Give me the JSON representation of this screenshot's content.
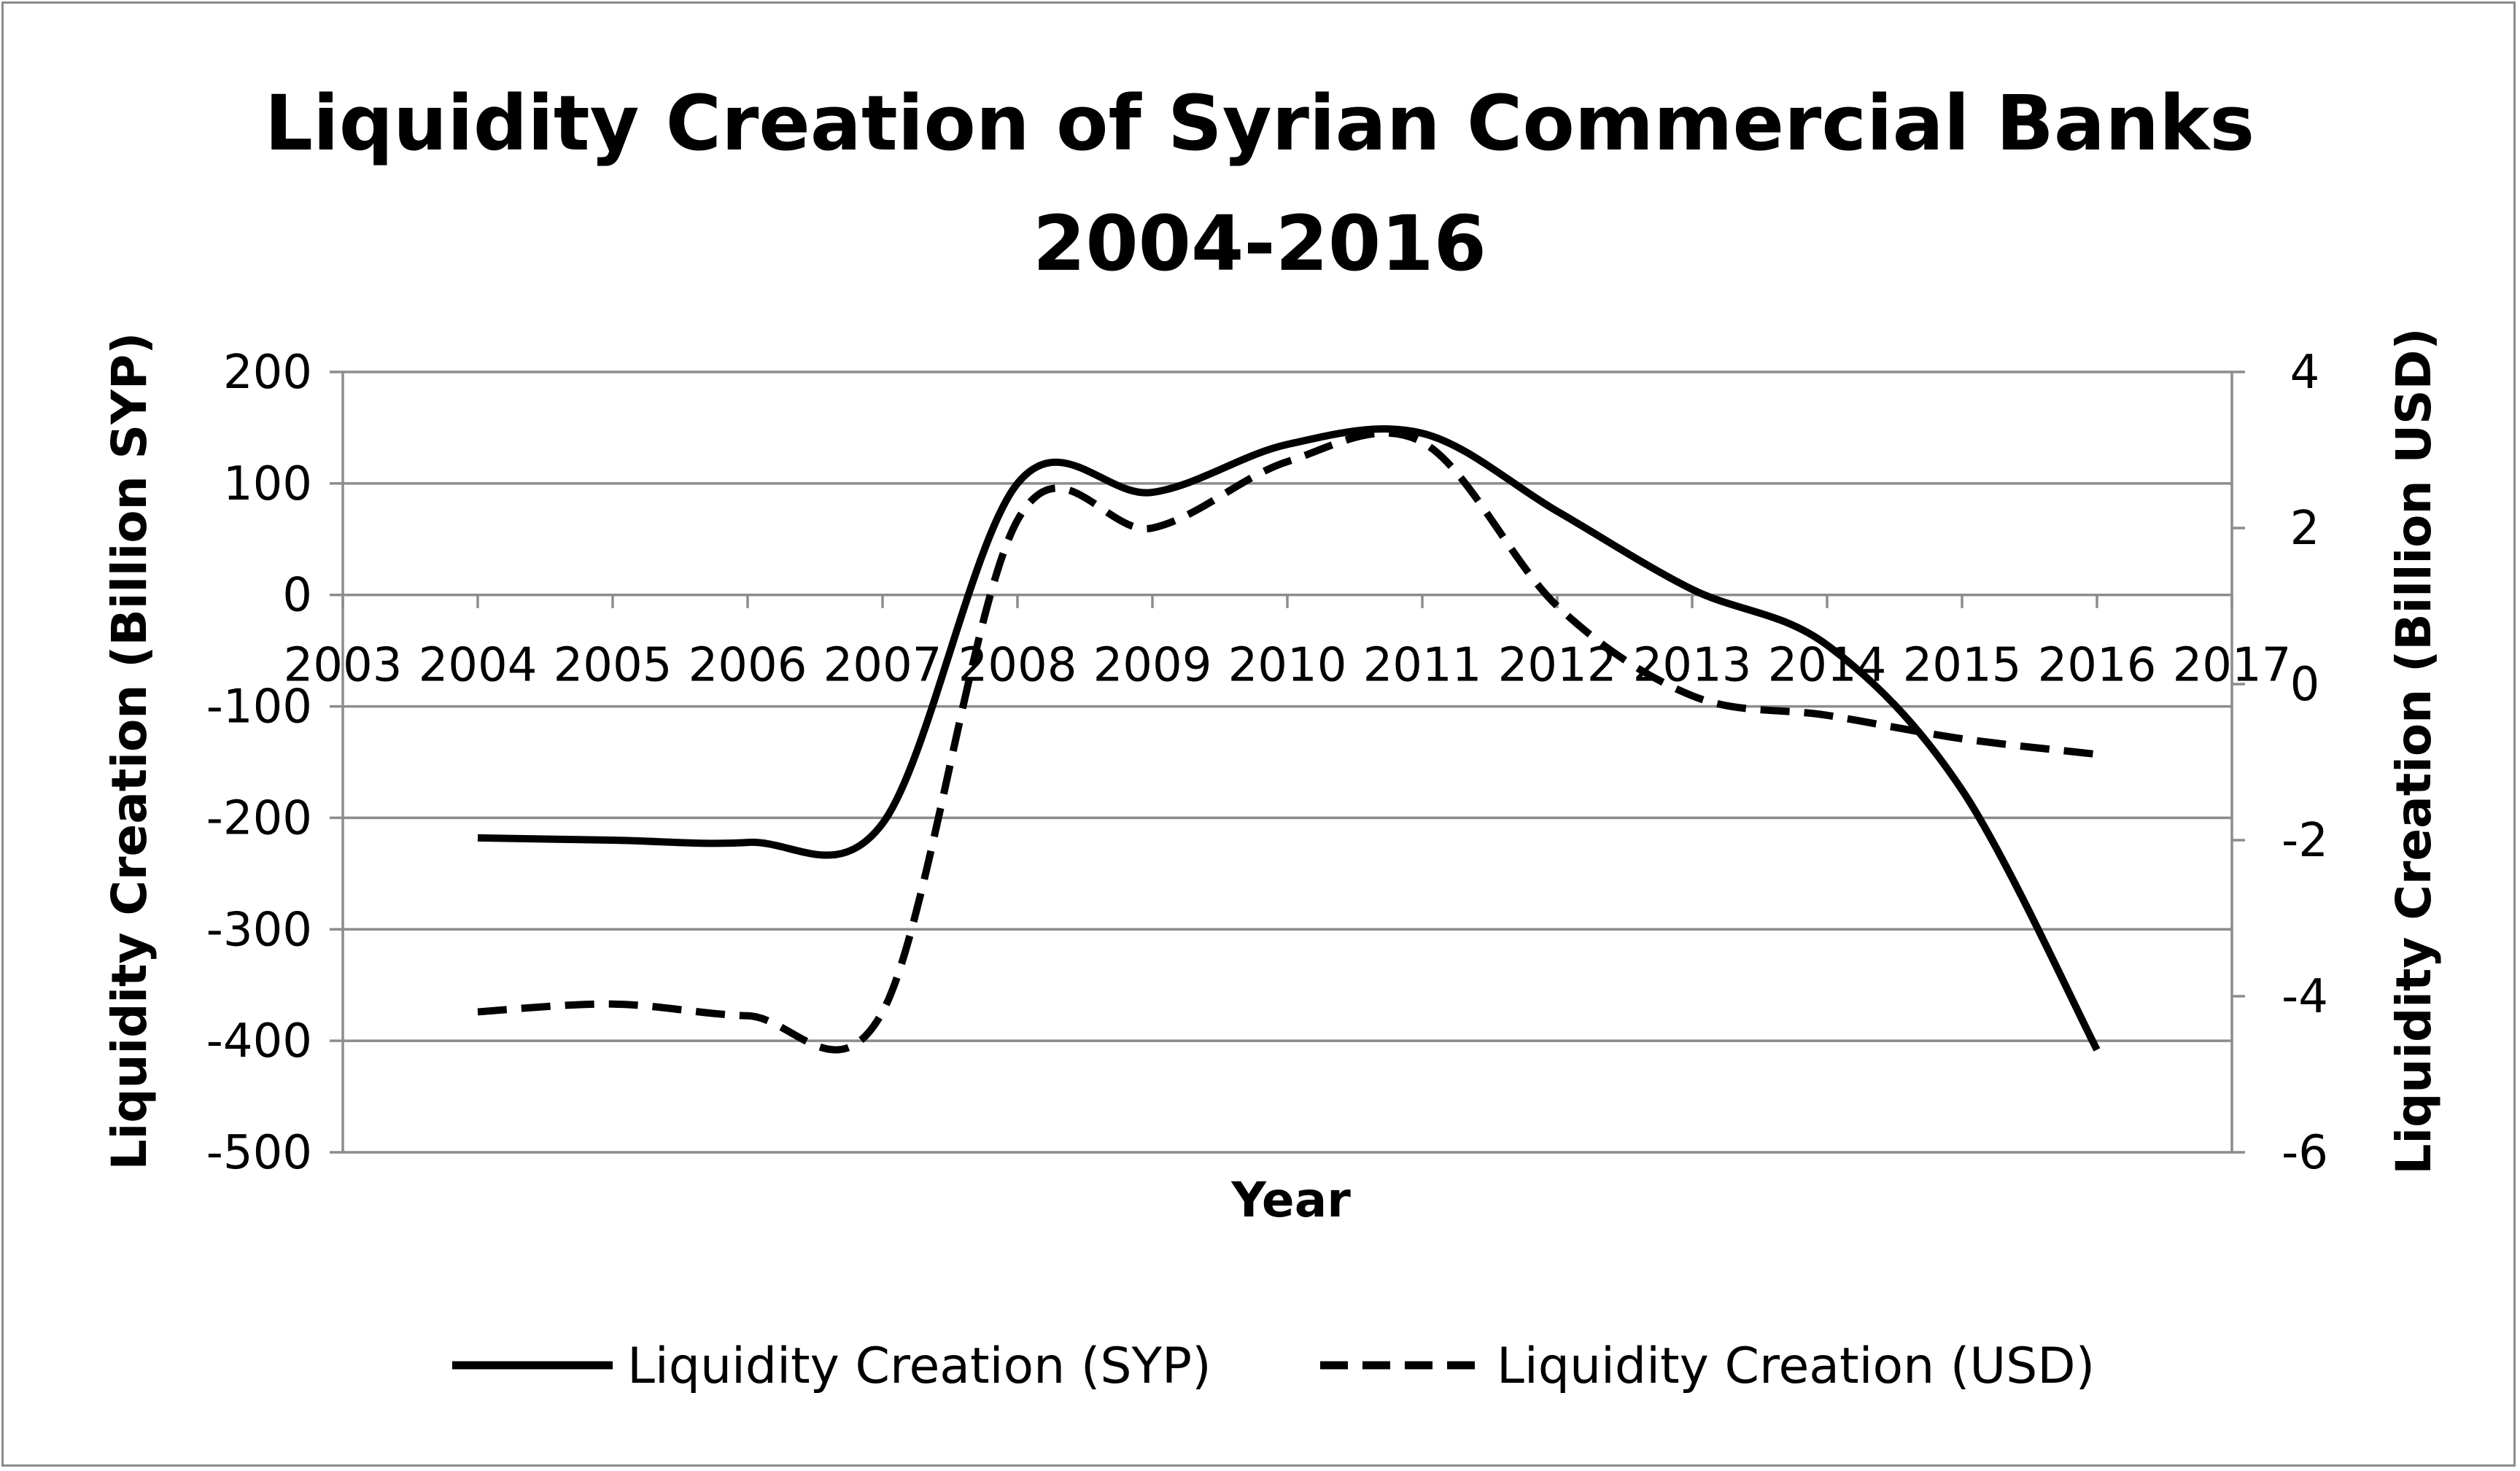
{
  "chart_data": {
    "type": "line",
    "title_lines": [
      "Liquidity Creation of Syrian Commercial Banks",
      "2004-2016"
    ],
    "xlabel": "Year",
    "ylabel": "Liquidity Creation (Billion SYP)",
    "y2label": "Liquidity Creation (Billion USD)",
    "xlim": [
      2003,
      2017
    ],
    "x_ticks": [
      "2003",
      "2004",
      "2005",
      "2006",
      "2007",
      "2008",
      "2009",
      "2010",
      "2011",
      "2012",
      "2013",
      "2014",
      "2015",
      "2016",
      "2017"
    ],
    "ylim": [
      -500,
      200
    ],
    "y_ticks": [
      "200",
      "100",
      "0",
      "-100",
      "-200",
      "-300",
      "-400",
      "-500"
    ],
    "y2lim": [
      -6,
      4
    ],
    "y2_ticks": [
      "4",
      "2",
      "0",
      "-2",
      "-4",
      "-6"
    ],
    "grid": true,
    "legend_position": "bottom",
    "series": [
      {
        "name": "Liquidity Creation (SYP)",
        "axis": "left",
        "style": "solid",
        "color": "#000000",
        "x": [
          2004,
          2005,
          2006,
          2007,
          2008,
          2009,
          2010,
          2011,
          2012,
          2013,
          2014,
          2015,
          2016
        ],
        "values": [
          -218,
          -220,
          -222,
          -205,
          100,
          92,
          135,
          145,
          75,
          5,
          -45,
          -175,
          -408
        ]
      },
      {
        "name": "Liquidity Creation (USD)",
        "axis": "right",
        "style": "dashed",
        "color": "#000000",
        "x": [
          2004,
          2005,
          2006,
          2007,
          2008,
          2009,
          2010,
          2011,
          2012,
          2013,
          2014,
          2015,
          2016
        ],
        "values": [
          -4.2,
          -4.1,
          -4.25,
          -4.2,
          2.1,
          2.0,
          2.85,
          3.1,
          1.0,
          -0.15,
          -0.4,
          -0.7,
          -0.9
        ]
      }
    ]
  }
}
